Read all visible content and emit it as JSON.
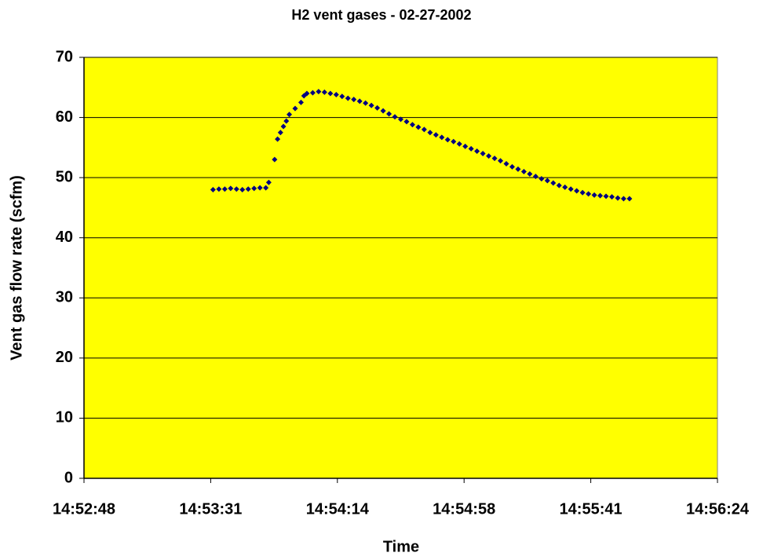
{
  "chart_data": {
    "type": "scatter",
    "title": "H2 vent gases - 02-27-2002",
    "x_label": "Time",
    "y_label": "Vent gas flow rate (scfm)",
    "series": [
      {
        "name": "Vent gas flow rate",
        "color": "#000080",
        "x": [
          53612,
          53614,
          53616,
          53618,
          53620,
          53622,
          53624,
          53626,
          53628,
          53630,
          53631,
          53633,
          53634,
          53635,
          53636,
          53637,
          53638,
          53640,
          53642,
          53643,
          53644,
          53646,
          53648,
          53650,
          53652,
          53654,
          53656,
          53658,
          53660,
          53662,
          53664,
          53666,
          53668,
          53670,
          53672,
          53674,
          53676,
          53678,
          53680,
          53682,
          53684,
          53686,
          53688,
          53690,
          53692,
          53694,
          53696,
          53698,
          53700,
          53702,
          53704,
          53706,
          53708,
          53710,
          53712,
          53714,
          53716,
          53718,
          53720,
          53722,
          53724,
          53726,
          53728,
          53730,
          53732,
          53734,
          53736,
          53738,
          53740,
          53742,
          53744,
          53746,
          53748,
          53750,
          53752,
          53754
        ],
        "values": [
          48.0,
          48.1,
          48.1,
          48.2,
          48.1,
          48.0,
          48.1,
          48.2,
          48.3,
          48.3,
          49.2,
          53.0,
          56.4,
          57.5,
          58.5,
          59.4,
          60.5,
          61.5,
          62.5,
          63.6,
          64.0,
          64.1,
          64.3,
          64.2,
          64.0,
          63.8,
          63.5,
          63.2,
          63.0,
          62.7,
          62.4,
          62.0,
          61.6,
          61.1,
          60.6,
          60.1,
          59.7,
          59.3,
          58.8,
          58.4,
          58.0,
          57.5,
          57.1,
          56.7,
          56.3,
          56.0,
          55.6,
          55.2,
          54.8,
          54.4,
          54.0,
          53.6,
          53.2,
          52.8,
          52.3,
          51.8,
          51.4,
          51.0,
          50.6,
          50.2,
          49.8,
          49.5,
          49.1,
          48.7,
          48.4,
          48.1,
          47.8,
          47.5,
          47.3,
          47.1,
          47.0,
          46.9,
          46.8,
          46.6,
          46.5,
          46.5
        ]
      }
    ],
    "xlim": [
      53568,
      53784
    ],
    "xticks": [
      {
        "value": 53568,
        "label": "14:52:48"
      },
      {
        "value": 53611.2,
        "label": "14:53:31"
      },
      {
        "value": 53654.4,
        "label": "14:54:14"
      },
      {
        "value": 53697.6,
        "label": "14:54:58"
      },
      {
        "value": 53740.8,
        "label": "14:55:41"
      },
      {
        "value": 53784,
        "label": "14:56:24"
      }
    ],
    "ylim": [
      0,
      70
    ],
    "yticks": [
      0,
      10,
      20,
      30,
      40,
      50,
      60,
      70
    ],
    "grid": true,
    "background": "#ffff00"
  }
}
